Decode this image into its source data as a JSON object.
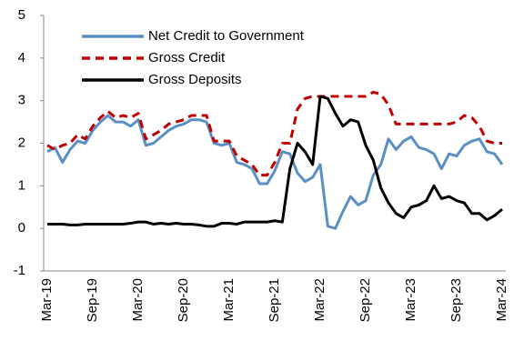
{
  "chart_data": {
    "type": "line",
    "categories": [
      "Mar-19",
      null,
      null,
      null,
      null,
      null,
      "Sep-19",
      null,
      null,
      null,
      null,
      null,
      "Mar-20",
      null,
      null,
      null,
      null,
      null,
      "Sep-20",
      null,
      null,
      null,
      null,
      null,
      "Mar-21",
      null,
      null,
      null,
      null,
      null,
      "Sep-21",
      null,
      null,
      null,
      null,
      null,
      "Mar-22",
      null,
      null,
      null,
      null,
      null,
      "Sep-22",
      null,
      null,
      null,
      null,
      null,
      "Mar-23",
      null,
      null,
      null,
      null,
      null,
      "Sep-23",
      null,
      null,
      null,
      null,
      null,
      "Mar-24"
    ],
    "series": [
      {
        "name": "Net Credit to Government",
        "color": "#5b8fc4",
        "line_style": "solid",
        "values": [
          1.8,
          1.9,
          1.55,
          1.85,
          2.05,
          2.0,
          2.3,
          2.5,
          2.65,
          2.5,
          2.5,
          2.4,
          2.55,
          1.95,
          2.0,
          2.15,
          2.3,
          2.4,
          2.45,
          2.55,
          2.55,
          2.5,
          2.0,
          1.95,
          2.0,
          1.55,
          1.5,
          1.4,
          1.05,
          1.05,
          1.35,
          1.8,
          1.75,
          1.3,
          1.1,
          1.2,
          1.5,
          0.05,
          0.0,
          0.4,
          0.75,
          0.55,
          0.65,
          1.25,
          1.5,
          2.1,
          1.85,
          2.05,
          2.15,
          1.9,
          1.85,
          1.75,
          1.4,
          1.75,
          1.7,
          1.95,
          2.05,
          2.1,
          1.8,
          1.75,
          1.5
        ]
      },
      {
        "name": "Gross Credit",
        "color": "#c00000",
        "line_style": "dashed",
        "values": [
          1.95,
          1.85,
          1.95,
          2.0,
          2.2,
          2.1,
          2.4,
          2.6,
          2.75,
          2.6,
          2.65,
          2.6,
          2.7,
          2.1,
          2.2,
          2.3,
          2.45,
          2.5,
          2.55,
          2.65,
          2.65,
          2.65,
          2.05,
          2.05,
          2.05,
          1.7,
          1.6,
          1.5,
          1.25,
          1.25,
          1.55,
          2.0,
          2.0,
          2.8,
          3.05,
          3.1,
          3.1,
          3.1,
          3.1,
          3.1,
          3.1,
          3.1,
          3.1,
          3.2,
          3.15,
          2.9,
          2.45,
          2.45,
          2.45,
          2.45,
          2.45,
          2.45,
          2.45,
          2.45,
          2.5,
          2.65,
          2.6,
          2.4,
          2.05,
          2.0,
          2.0
        ]
      },
      {
        "name": "Gross Deposits",
        "color": "#000000",
        "line_style": "solid",
        "values": [
          0.1,
          0.1,
          0.1,
          0.08,
          0.08,
          0.1,
          0.1,
          0.1,
          0.1,
          0.1,
          0.1,
          0.12,
          0.15,
          0.15,
          0.1,
          0.12,
          0.1,
          0.12,
          0.1,
          0.1,
          0.08,
          0.05,
          0.05,
          0.12,
          0.12,
          0.1,
          0.15,
          0.15,
          0.15,
          0.15,
          0.18,
          0.15,
          1.4,
          2.0,
          1.8,
          1.5,
          3.1,
          3.05,
          2.7,
          2.4,
          2.55,
          2.5,
          1.95,
          1.6,
          0.95,
          0.6,
          0.35,
          0.25,
          0.5,
          0.55,
          0.65,
          1.0,
          0.7,
          0.75,
          0.65,
          0.6,
          0.35,
          0.35,
          0.2,
          0.3,
          0.45
        ]
      }
    ],
    "ylim": [
      -1,
      5
    ],
    "yticks": [
      -1,
      0,
      1,
      2,
      3,
      4,
      5
    ],
    "grid": false,
    "legend": "upper left"
  }
}
